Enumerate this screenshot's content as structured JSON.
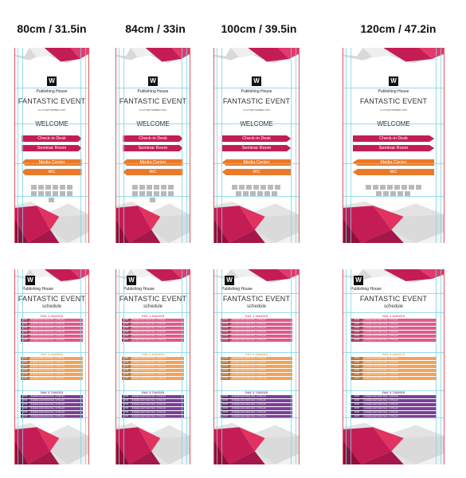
{
  "size_labels": [
    "80cm / 31.5in",
    "84cm / 33in",
    "100cm / 39.5in",
    "120cm / 47.2in"
  ],
  "colors": {
    "magenta": "#c41d55",
    "orange": "#ea7a29",
    "pink": "#e05a8a",
    "light_orange": "#f3a25a",
    "purple": "#7b3f98",
    "guide": "#7fd3e6",
    "trim": "#e0555f"
  },
  "welcome_banner": {
    "logo_letter": "W",
    "publisher": "Publishing House",
    "title": "FANTASTIC EVENT",
    "date": "11-15 SEPTEMBER 2015",
    "welcome": "WELCOME",
    "signs": [
      {
        "label": "Check-in Desk",
        "direction": "right"
      },
      {
        "label": "Seminar Room",
        "direction": "right"
      },
      {
        "label": "Media Center",
        "direction": "left"
      },
      {
        "label": "WC",
        "direction": "left"
      }
    ]
  },
  "schedule_banner": {
    "logo_letter": "W",
    "publisher": "Publishing House",
    "title": "FANTASTIC EVENT",
    "subtitle": "schedule",
    "days": [
      {
        "title": "DAY 1   5/4/2015",
        "color": "#e05a8a"
      },
      {
        "title": "DAY 2   6/4/2015",
        "color": "#f3a25a"
      },
      {
        "title": "DAY 3   7/4/2015",
        "color": "#7b3f98"
      }
    ],
    "row_time": "10:00",
    "row_text": "A simple event name here - in One pix"
  }
}
